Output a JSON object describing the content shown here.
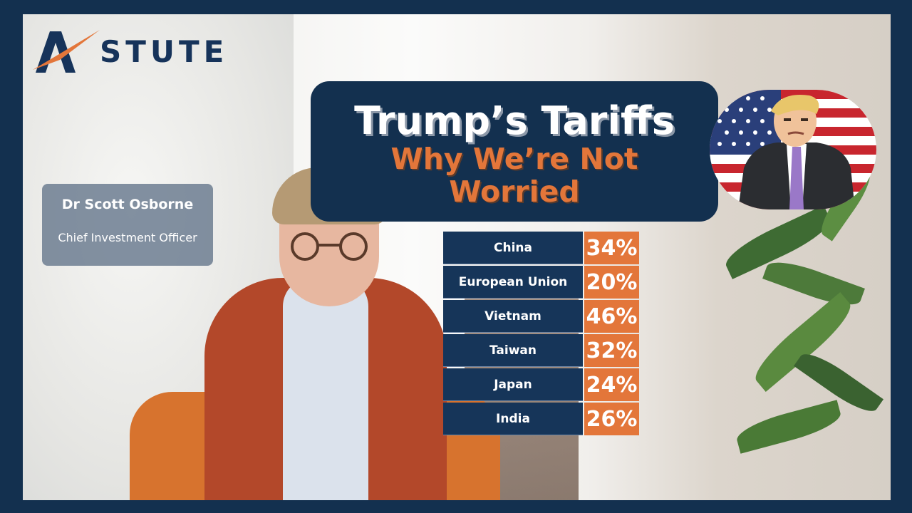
{
  "brand": {
    "logo_text": "STUTE",
    "accent": "#e3763a",
    "navy": "#14304f"
  },
  "speaker": {
    "name": "Dr Scott Osborne",
    "role": "Chief Investment Officer"
  },
  "title": {
    "main": "Trump’s Tariffs",
    "sub_line1": "Why We’re Not",
    "sub_line2": "Worried"
  },
  "tariffs": [
    {
      "country": "China",
      "rate": "34%"
    },
    {
      "country": "European Union",
      "rate": "20%"
    },
    {
      "country": "Vietnam",
      "rate": "46%"
    },
    {
      "country": "Taiwan",
      "rate": "32%"
    },
    {
      "country": "Japan",
      "rate": "24%"
    },
    {
      "country": "India",
      "rate": "26%"
    }
  ]
}
